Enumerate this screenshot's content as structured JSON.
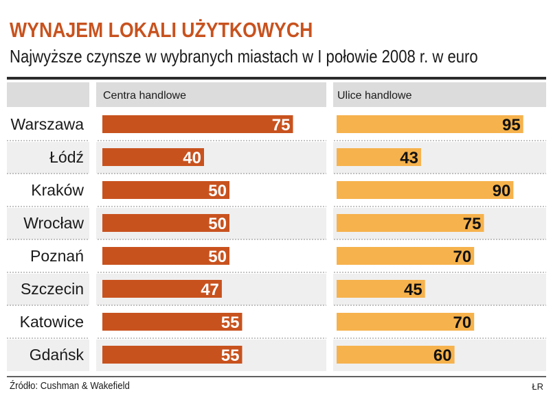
{
  "chart_data": {
    "type": "bar",
    "title": "WYNAJEM LOKALI UŻYTKOWYCH",
    "subtitle": "Najwyższe czynsze w wybranych miastach w I połowie 2008 r. w euro",
    "categories": [
      "Warszawa",
      "Łódź",
      "Kraków",
      "Wrocław",
      "Poznań",
      "Szczecin",
      "Katowice",
      "Gdańsk"
    ],
    "series": [
      {
        "name": "Centra handlowe",
        "values": [
          75,
          40,
          50,
          50,
          50,
          47,
          55,
          55
        ],
        "color": "#c8521e"
      },
      {
        "name": "Ulice handlowe",
        "values": [
          95,
          43,
          90,
          75,
          70,
          45,
          70,
          60
        ],
        "color": "#f6b24c"
      }
    ],
    "source": "Źródło: Cushman & Wakefield",
    "credit": "ŁR"
  }
}
